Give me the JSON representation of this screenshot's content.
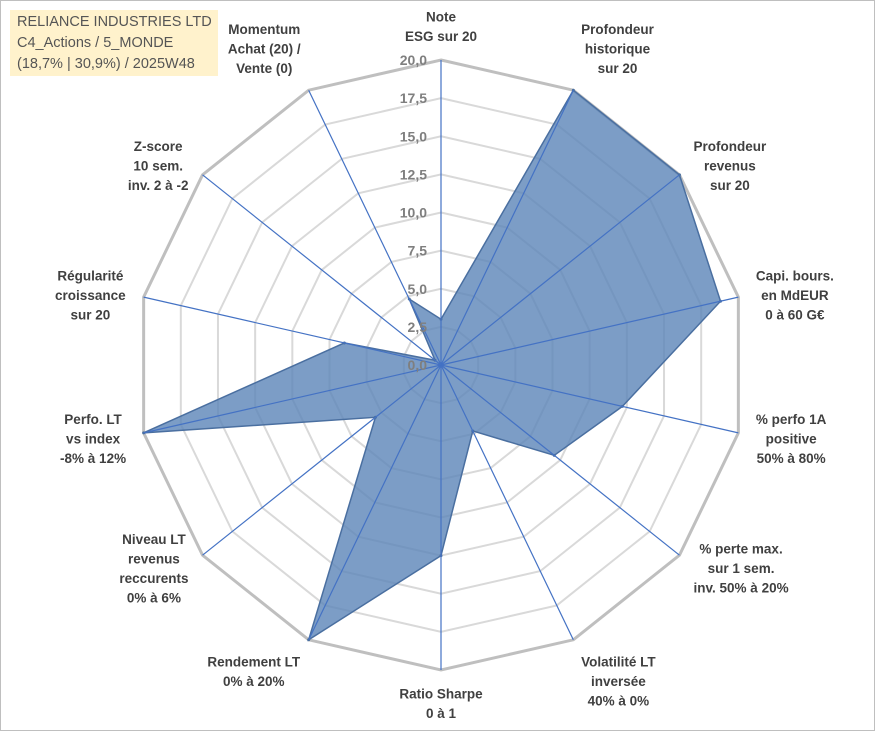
{
  "title": {
    "line1": "RELIANCE INDUSTRIES LTD",
    "line2": "C4_Actions / 5_MONDE",
    "line3": "(18,7% | 30,9%) / 2025W48"
  },
  "chart_data": {
    "type": "radar",
    "rmin": 0,
    "rmax": 20,
    "step": 2.5,
    "tick_labels": [
      "0,0",
      "2,5",
      "5,0",
      "7,5",
      "10,0",
      "12,5",
      "15,0",
      "17,5",
      "20,0"
    ],
    "axes": [
      {
        "label": [
          "Note",
          "ESG sur 20"
        ]
      },
      {
        "label": [
          "Profondeur",
          "historique",
          "sur 20"
        ]
      },
      {
        "label": [
          "Profondeur",
          "revenus",
          "sur 20"
        ]
      },
      {
        "label": [
          "Capi. bours.",
          "en MdEUR",
          "0 à 60 G€"
        ]
      },
      {
        "label": [
          "% perfo 1A",
          "positive",
          "50% à 80%"
        ]
      },
      {
        "label": [
          "% perte max.",
          "sur 1 sem.",
          "inv. 50% à 20%"
        ]
      },
      {
        "label": [
          "Volatilité LT",
          "inversée",
          "40% à 0%"
        ]
      },
      {
        "label": [
          "Ratio Sharpe",
          "0 à 1"
        ]
      },
      {
        "label": [
          "Rendement LT",
          "0% à 20%"
        ]
      },
      {
        "label": [
          "Niveau LT",
          "revenus",
          "reccurents",
          "0% à 6%"
        ]
      },
      {
        "label": [
          "Perfo. LT",
          "vs index",
          "-8% à 12%"
        ]
      },
      {
        "label": [
          "Régularité",
          "croissance",
          "sur 20"
        ]
      },
      {
        "label": [
          "Z-score",
          "10 sem.",
          "inv. 2 à -2"
        ]
      },
      {
        "label": [
          "Momentum",
          "Achat (20) /",
          "Vente (0)"
        ]
      }
    ],
    "series": [
      {
        "name": "RELIANCE INDUSTRIES LTD",
        "color": "#5b84b8",
        "values": [
          3.0,
          20.0,
          20.0,
          18.8,
          12.2,
          9.5,
          4.8,
          12.5,
          20.0,
          5.5,
          20.0,
          6.5,
          0.5,
          4.8
        ]
      }
    ]
  },
  "colors": {
    "grid": "#d9d9d9",
    "outer_grid": "#bfbfbf",
    "spoke": "#4472c4",
    "fill": "#5b84b8"
  }
}
